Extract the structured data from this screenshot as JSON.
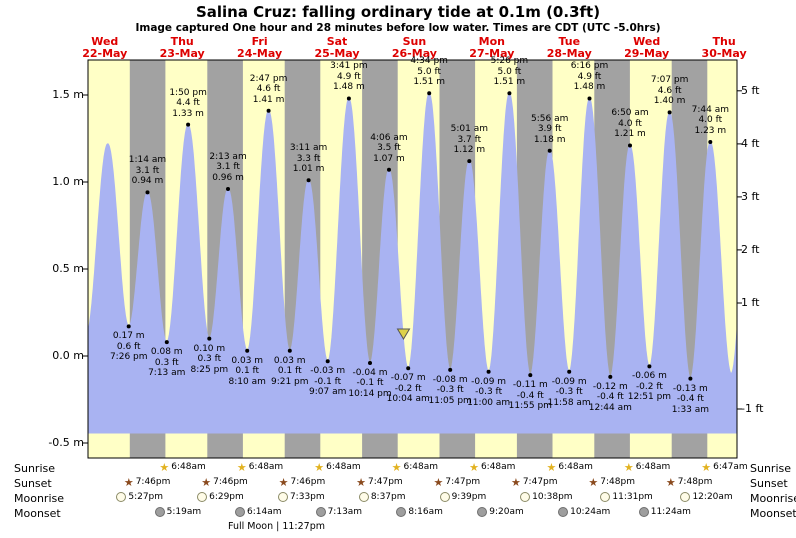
{
  "title": "Salina Cruz: falling ordinary tide at 0.1m (0.3ft)",
  "subtitle": "Image captured One hour and 28 minutes before low water. Times are CDT (UTC -5.0hrs)",
  "colors": {
    "day_band": "#ffffc6",
    "night_band": "#a2a2a2",
    "tide_fill": "#a9b3f2",
    "day_label": "#dd0000",
    "marker_fill": "#ddd24a",
    "marker_stroke": "#555555"
  },
  "chart_data": {
    "type": "area",
    "title": "Salina Cruz: falling ordinary tide at 0.1m (0.3ft)",
    "ylabel_left": "m",
    "ylabel_right": "ft",
    "axis": {
      "t0": 6.8,
      "t1": 208
    },
    "night": {
      "sunset_h": 19.77,
      "sunrise_h": 6.8
    },
    "y_axis": {
      "m_ticks": [
        1.5,
        1.0,
        0.5,
        0.0,
        -0.5
      ],
      "ft_ticks": [
        5,
        4,
        3,
        2,
        1,
        -1
      ]
    },
    "days": [
      {
        "dow": "Wed",
        "date": "22-May"
      },
      {
        "dow": "Thu",
        "date": "23-May"
      },
      {
        "dow": "Fri",
        "date": "24-May"
      },
      {
        "dow": "Sat",
        "date": "25-May"
      },
      {
        "dow": "Sun",
        "date": "26-May"
      },
      {
        "dow": "Mon",
        "date": "27-May"
      },
      {
        "dow": "Tue",
        "date": "28-May"
      },
      {
        "dow": "Wed",
        "date": "29-May"
      },
      {
        "dow": "Thu",
        "date": "30-May"
      }
    ],
    "tide_events": [
      {
        "t": 6.2,
        "height_m": 0.12,
        "type": "edge"
      },
      {
        "t": 12.92,
        "height_m": 1.22,
        "type": "edge"
      },
      {
        "t": 19.433,
        "height_m": 0.17,
        "type": "low",
        "time": "7:26 pm"
      },
      {
        "t": 25.233,
        "height_m": 0.94,
        "type": "high",
        "time": "1:14 am"
      },
      {
        "t": 31.217,
        "height_m": 0.08,
        "type": "low",
        "time": "7:13 am"
      },
      {
        "t": 37.833,
        "height_m": 1.33,
        "type": "high",
        "time": "1:50 pm"
      },
      {
        "t": 44.417,
        "height_m": 0.1,
        "type": "low",
        "time": "8:25 pm"
      },
      {
        "t": 50.217,
        "height_m": 0.96,
        "type": "high",
        "time": "2:13 am"
      },
      {
        "t": 56.167,
        "height_m": 0.03,
        "type": "low",
        "time": "8:10 am"
      },
      {
        "t": 62.783,
        "height_m": 1.41,
        "type": "high",
        "time": "2:47 pm"
      },
      {
        "t": 69.35,
        "height_m": 0.03,
        "type": "low",
        "time": "9:21 pm"
      },
      {
        "t": 75.183,
        "height_m": 1.01,
        "type": "high",
        "time": "3:11 am"
      },
      {
        "t": 81.117,
        "height_m": -0.03,
        "type": "low",
        "time": "9:07 am"
      },
      {
        "t": 87.683,
        "height_m": 1.48,
        "type": "high",
        "time": "3:41 pm"
      },
      {
        "t": 94.233,
        "height_m": -0.04,
        "type": "low",
        "time": "10:14 pm"
      },
      {
        "t": 100.1,
        "height_m": 1.07,
        "type": "high",
        "time": "4:06 am"
      },
      {
        "t": 106.067,
        "height_m": -0.07,
        "type": "low",
        "time": "10:04 am"
      },
      {
        "t": 112.567,
        "height_m": 1.51,
        "type": "high",
        "time": "4:34 pm"
      },
      {
        "t": 119.083,
        "height_m": -0.08,
        "type": "low",
        "time": "11:05 pm"
      },
      {
        "t": 125.017,
        "height_m": 1.12,
        "type": "high",
        "time": "5:01 am"
      },
      {
        "t": 131.0,
        "height_m": -0.09,
        "type": "low",
        "time": "11:00 am"
      },
      {
        "t": 137.433,
        "height_m": 1.51,
        "type": "high",
        "time": "5:26 pm"
      },
      {
        "t": 143.917,
        "height_m": -0.11,
        "type": "low",
        "time": "11:55 pm"
      },
      {
        "t": 149.933,
        "height_m": 1.18,
        "type": "high",
        "time": "5:56 am"
      },
      {
        "t": 155.967,
        "height_m": -0.09,
        "type": "low",
        "time": "11:58 am"
      },
      {
        "t": 162.267,
        "height_m": 1.48,
        "type": "high",
        "time": "6:16 pm"
      },
      {
        "t": 168.733,
        "height_m": -0.12,
        "type": "low",
        "time": "12:44 am"
      },
      {
        "t": 174.833,
        "height_m": 1.21,
        "type": "high",
        "time": "6:50 am"
      },
      {
        "t": 180.85,
        "height_m": -0.06,
        "type": "low",
        "time": "12:51 pm"
      },
      {
        "t": 187.117,
        "height_m": 1.4,
        "type": "high",
        "time": "7:07 pm"
      },
      {
        "t": 193.55,
        "height_m": -0.13,
        "type": "low",
        "time": "1:33 am"
      },
      {
        "t": 199.733,
        "height_m": 1.23,
        "type": "high",
        "time": "7:44 am"
      },
      {
        "t": 206.2,
        "height_m": -0.1,
        "type": "edge"
      },
      {
        "t": 212.5,
        "height_m": 1.24,
        "type": "edge"
      }
    ],
    "current_marker": {
      "t": 104.6,
      "status": "falling",
      "level_m": 0.1,
      "level_ft": 0.3
    }
  },
  "astro": {
    "rows": [
      {
        "label": "Sunrise",
        "icon": "sun-star-yellow",
        "entries": [
          {
            "time": "6:48am",
            "t": 30.8
          },
          {
            "time": "6:48am",
            "t": 54.8
          },
          {
            "time": "6:48am",
            "t": 78.8
          },
          {
            "time": "6:48am",
            "t": 102.8
          },
          {
            "time": "6:48am",
            "t": 126.8
          },
          {
            "time": "6:48am",
            "t": 150.8
          },
          {
            "time": "6:48am",
            "t": 174.8
          },
          {
            "time": "6:47am",
            "t": 198.783
          }
        ]
      },
      {
        "label": "Sunset",
        "icon": "sun-star-brown",
        "entries": [
          {
            "time": "7:46pm",
            "t": 19.767
          },
          {
            "time": "7:46pm",
            "t": 43.767
          },
          {
            "time": "7:46pm",
            "t": 67.767
          },
          {
            "time": "7:47pm",
            "t": 91.783
          },
          {
            "time": "7:47pm",
            "t": 115.783
          },
          {
            "time": "7:47pm",
            "t": 139.783
          },
          {
            "time": "7:48pm",
            "t": 163.8
          },
          {
            "time": "7:48pm",
            "t": 187.8
          }
        ]
      },
      {
        "label": "Moonrise",
        "icon": "moon-circle-open",
        "entries": [
          {
            "time": "5:27pm",
            "t": 17.45
          },
          {
            "time": "6:29pm",
            "t": 42.483
          },
          {
            "time": "7:33pm",
            "t": 67.55
          },
          {
            "time": "8:37pm",
            "t": 92.617
          },
          {
            "time": "9:39pm",
            "t": 117.65
          },
          {
            "time": "10:38pm",
            "t": 142.633
          },
          {
            "time": "11:31pm",
            "t": 167.517
          },
          {
            "time": "12:20am",
            "t": 192.333
          }
        ]
      },
      {
        "label": "Moonset",
        "icon": "moon-circle-filled",
        "entries": [
          {
            "time": "5:19am",
            "t": 29.317
          },
          {
            "time": "6:14am",
            "t": 54.233
          },
          {
            "time": "7:13am",
            "t": 79.217
          },
          {
            "time": "8:16am",
            "t": 104.267
          },
          {
            "time": "9:20am",
            "t": 129.333
          },
          {
            "time": "10:24am",
            "t": 154.4
          },
          {
            "time": "11:24am",
            "t": 179.4
          }
        ]
      }
    ],
    "footnote": "Full Moon | 11:27pm"
  }
}
